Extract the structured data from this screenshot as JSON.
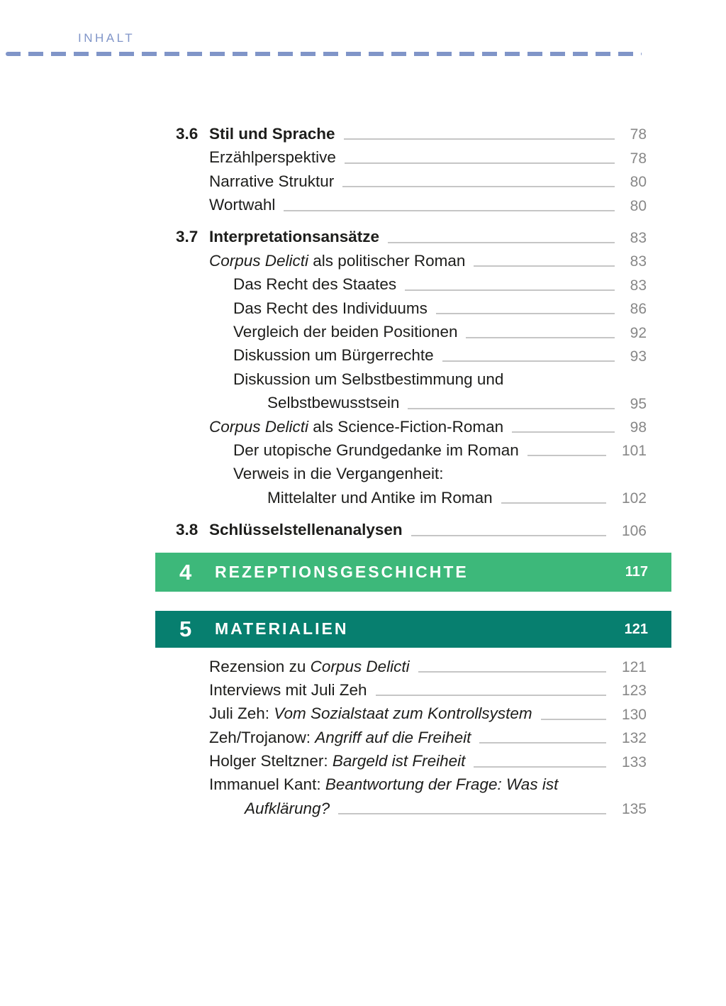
{
  "header": {
    "label": "INHALT"
  },
  "colors": {
    "accent_blue": "#8095C8",
    "banner_green": "#3DB87A",
    "banner_teal": "#077F6F",
    "text_black": "#1D1D1B",
    "page_number_gray": "#878787",
    "leader_gray": "#C6C6C6"
  },
  "toc": {
    "entries": [
      {
        "type": "section",
        "num": "3.6",
        "segments": [
          {
            "t": "Stil und Sprache"
          }
        ],
        "page": "78"
      },
      {
        "type": "l1",
        "segments": [
          {
            "t": "Erzählperspektive"
          }
        ],
        "page": "78"
      },
      {
        "type": "l1",
        "segments": [
          {
            "t": "Narrative Struktur"
          }
        ],
        "page": "80"
      },
      {
        "type": "l1",
        "segments": [
          {
            "t": "Wortwahl"
          }
        ],
        "page": "80"
      },
      {
        "type": "section",
        "num": "3.7",
        "segments": [
          {
            "t": "Interpretationsansätze"
          }
        ],
        "page": "83",
        "gap": true
      },
      {
        "type": "l1",
        "segments": [
          {
            "t": "Corpus Delicti",
            "i": true
          },
          {
            "t": " als politischer Roman"
          }
        ],
        "page": "83"
      },
      {
        "type": "l2",
        "segments": [
          {
            "t": "Das Recht des Staates"
          }
        ],
        "page": "83"
      },
      {
        "type": "l2",
        "segments": [
          {
            "t": "Das Recht des Individuums"
          }
        ],
        "page": "86"
      },
      {
        "type": "l2",
        "segments": [
          {
            "t": "Vergleich der beiden Positionen"
          }
        ],
        "page": "92"
      },
      {
        "type": "l2",
        "segments": [
          {
            "t": "Diskussion um Bürgerrechte"
          }
        ],
        "page": "93"
      },
      {
        "type": "l2",
        "segments": [
          {
            "t": "Diskussion um Selbstbestimmung und"
          }
        ]
      },
      {
        "type": "w2",
        "segments": [
          {
            "t": "Selbstbewusstsein"
          }
        ],
        "page": "95"
      },
      {
        "type": "l1",
        "segments": [
          {
            "t": "Corpus Delicti",
            "i": true
          },
          {
            "t": " als Science-Fiction-Roman"
          }
        ],
        "page": "98"
      },
      {
        "type": "l2",
        "segments": [
          {
            "t": "Der utopische Grundgedanke im Roman"
          }
        ],
        "page": "101"
      },
      {
        "type": "l2",
        "segments": [
          {
            "t": "Verweis in die Vergangenheit:"
          }
        ]
      },
      {
        "type": "w2",
        "segments": [
          {
            "t": "Mittelalter und Antike im Roman"
          }
        ],
        "page": "102"
      },
      {
        "type": "section",
        "num": "3.8",
        "segments": [
          {
            "t": "Schlüsselstellenanalysen"
          }
        ],
        "page": "106",
        "gap": true
      },
      {
        "type": "banner",
        "style": "green",
        "num": "4",
        "title": "REZEPTIONSGESCHICHTE",
        "page": "117"
      },
      {
        "type": "banner",
        "style": "teal",
        "num": "5",
        "title": "MATERIALIEN",
        "page": "121"
      },
      {
        "type": "l1",
        "segments": [
          {
            "t": "Rezension zu "
          },
          {
            "t": "Corpus Delicti",
            "i": true
          }
        ],
        "page": "121",
        "gap4": true
      },
      {
        "type": "l1",
        "segments": [
          {
            "t": "Interviews mit Juli Zeh"
          }
        ],
        "page": "123"
      },
      {
        "type": "l1",
        "segments": [
          {
            "t": "Juli Zeh: "
          },
          {
            "t": "Vom Sozialstaat zum Kontrollsystem",
            "i": true
          }
        ],
        "page": "130"
      },
      {
        "type": "l1",
        "segments": [
          {
            "t": "Zeh/Trojanow: "
          },
          {
            "t": "Angriff auf die Freiheit",
            "i": true
          }
        ],
        "page": "132"
      },
      {
        "type": "l1",
        "segments": [
          {
            "t": "Holger Steltzner: "
          },
          {
            "t": "Bargeld ist Freiheit",
            "i": true
          }
        ],
        "page": "133"
      },
      {
        "type": "l1",
        "segments": [
          {
            "t": "Immanuel Kant: "
          },
          {
            "t": "Beantwortung der Frage: Was ist",
            "i": true
          }
        ]
      },
      {
        "type": "w1",
        "segments": [
          {
            "t": "Aufklärung?",
            "i": true
          }
        ],
        "page": "135"
      }
    ]
  }
}
